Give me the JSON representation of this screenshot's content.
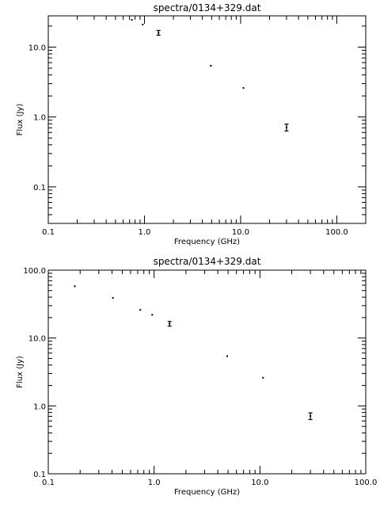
{
  "chart_data": [
    {
      "type": "scatter",
      "title": "spectra/0134+329.dat",
      "xlabel": "Frequency (GHz)",
      "ylabel": "Flux (Jy)",
      "xscale": "log",
      "yscale": "log",
      "xlim": [
        0.1,
        200
      ],
      "ylim": [
        0.03,
        28
      ],
      "grid": false,
      "x_ticks": [
        0.1,
        1.0,
        10.0,
        100.0
      ],
      "x_tick_labels": [
        "0.1",
        "1.0",
        "10.0",
        "100.0"
      ],
      "y_ticks": [
        0.1,
        1.0,
        10.0
      ],
      "y_tick_labels": [
        "0.1",
        "1.0",
        "10.0"
      ],
      "points": [
        {
          "x": 0.74,
          "y": 24.5
        },
        {
          "x": 0.96,
          "y": 21.0
        },
        {
          "x": 1.4,
          "y": 16.0,
          "err": 0.4
        },
        {
          "x": 4.9,
          "y": 5.4
        },
        {
          "x": 10.7,
          "y": 2.6
        },
        {
          "x": 30.0,
          "y": 0.71,
          "err": 0.08
        }
      ]
    },
    {
      "type": "scatter",
      "title": "spectra/0134+329.dat",
      "xlabel": "Frequency (GHz)",
      "ylabel": "Flux (Jy)",
      "xscale": "log",
      "yscale": "log",
      "xlim": [
        0.1,
        100
      ],
      "ylim": [
        0.1,
        100
      ],
      "grid": false,
      "x_ticks": [
        0.1,
        1.0,
        10.0,
        100.0
      ],
      "x_tick_labels": [
        "0.1",
        "1.0",
        "10.0",
        "100.0"
      ],
      "y_ticks": [
        0.1,
        1.0,
        10.0,
        100.0
      ],
      "y_tick_labels": [
        "0.1",
        "1.0",
        "10.0",
        "100.0"
      ],
      "points": [
        {
          "x": 0.178,
          "y": 58.0
        },
        {
          "x": 0.408,
          "y": 39.0
        },
        {
          "x": 0.74,
          "y": 26.0
        },
        {
          "x": 0.96,
          "y": 22.0
        },
        {
          "x": 1.4,
          "y": 16.2,
          "err": 0.5
        },
        {
          "x": 4.9,
          "y": 5.4
        },
        {
          "x": 10.7,
          "y": 2.6
        },
        {
          "x": 30.0,
          "y": 0.71,
          "err": 0.08
        }
      ]
    }
  ]
}
